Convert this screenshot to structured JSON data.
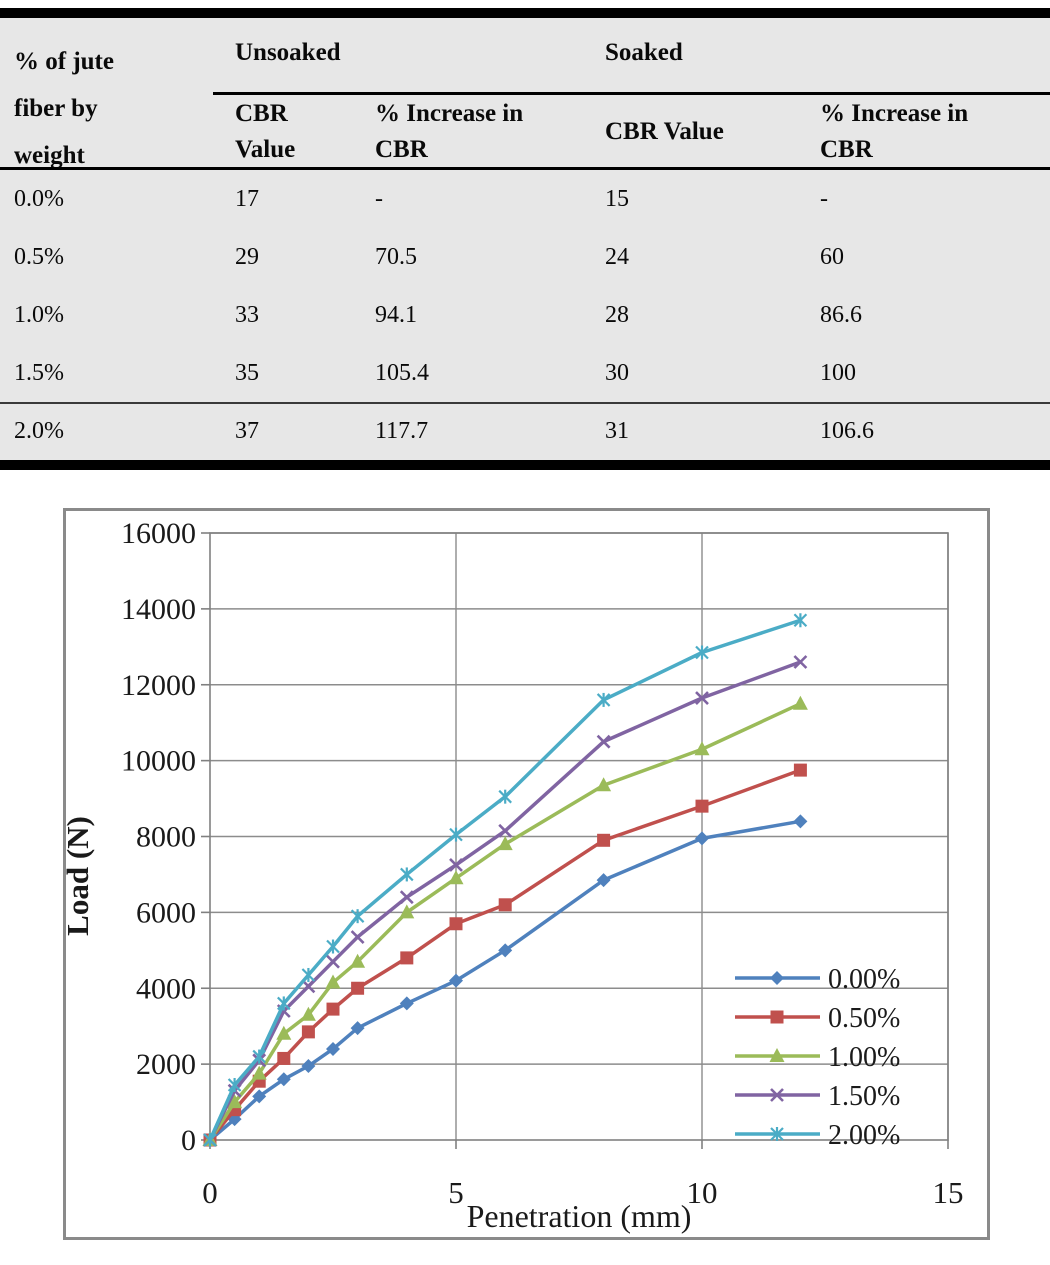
{
  "table": {
    "corner_header": "% of jute\nfiber by\nweight",
    "groups": [
      {
        "label": "Unsoaked"
      },
      {
        "label": "Soaked"
      }
    ],
    "sub_headers": [
      "CBR Value",
      "% Increase in CBR",
      "CBR Value",
      "% Increase in CBR"
    ],
    "rows": [
      [
        "0.0%",
        "17",
        "-",
        "15",
        "-"
      ],
      [
        "0.5%",
        "29",
        "70.5",
        "24",
        "60"
      ],
      [
        "1.0%",
        "33",
        "94.1",
        "28",
        "86.6"
      ],
      [
        "1.5%",
        "35",
        "105.4",
        "30",
        "100"
      ],
      [
        "2.0%",
        "37",
        "117.7",
        "31",
        "106.6"
      ]
    ]
  },
  "chart_data": {
    "type": "line",
    "x": [
      0,
      0.5,
      1,
      1.5,
      2,
      2.5,
      3,
      4,
      5,
      6,
      8,
      10,
      12
    ],
    "series": [
      {
        "name": "0.00%",
        "color": "#4F81BD",
        "marker": "diamond",
        "values": [
          0,
          550,
          1150,
          1600,
          1950,
          2400,
          2950,
          3600,
          4200,
          5000,
          6850,
          7950,
          8400
        ]
      },
      {
        "name": "0.50%",
        "color": "#C0504D",
        "marker": "square",
        "values": [
          0,
          800,
          1550,
          2150,
          2850,
          3450,
          4000,
          4800,
          5700,
          6200,
          7900,
          8800,
          9750
        ]
      },
      {
        "name": "1.00%",
        "color": "#9BBB59",
        "marker": "triangle",
        "values": [
          0,
          1000,
          1750,
          2800,
          3300,
          4150,
          4700,
          6000,
          6900,
          7800,
          9350,
          10300,
          11500
        ]
      },
      {
        "name": "1.50%",
        "color": "#8064A2",
        "marker": "x",
        "values": [
          0,
          1300,
          2100,
          3400,
          4050,
          4700,
          5350,
          6400,
          7250,
          8150,
          10500,
          11650,
          12600
        ]
      },
      {
        "name": "2.00%",
        "color": "#4BACC6",
        "marker": "asterisk",
        "values": [
          0,
          1450,
          2200,
          3600,
          4350,
          5100,
          5900,
          7000,
          8050,
          9050,
          11600,
          12850,
          13700
        ]
      }
    ],
    "title": "",
    "xlabel": "Penetration (mm)",
    "ylabel": "Load (N)",
    "xlim": [
      0,
      15
    ],
    "ylim": [
      0,
      16000
    ],
    "xticks": [
      0,
      5,
      10,
      15
    ],
    "yticks": [
      0,
      2000,
      4000,
      6000,
      8000,
      10000,
      12000,
      14000,
      16000
    ],
    "grid": true,
    "legend_position": "inside-bottom-right",
    "grid_color": "#8c8c8c",
    "tick_label_color": "#1a1a1a"
  }
}
